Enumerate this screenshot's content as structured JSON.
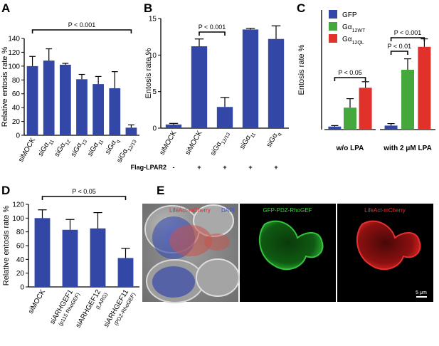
{
  "panels": {
    "A": {
      "letter": "A"
    },
    "B": {
      "letter": "B"
    },
    "C": {
      "letter": "C"
    },
    "D": {
      "letter": "D"
    },
    "E": {
      "letter": "E",
      "images": [
        {
          "label": "LifeAct-mCherry",
          "label2": "DAPI"
        },
        {
          "label": "GFP-PDZ-RhoGEF"
        },
        {
          "label": "LifeAct-mCherry",
          "scale_bar": "5 μm"
        }
      ]
    }
  },
  "chart_data": [
    {
      "panel": "A",
      "type": "bar",
      "ylabel": "Relative entosis rate %",
      "ylim": [
        0,
        140
      ],
      "yticks": [
        0,
        20,
        40,
        60,
        80,
        100,
        120,
        140
      ],
      "categories": [
        "siMOCK",
        "siGα11",
        "siGα12",
        "siGα13",
        "siGα11",
        "siGαq",
        "siGα12/13"
      ],
      "values": [
        100,
        108,
        102,
        81,
        74,
        68,
        11
      ],
      "errors": [
        14,
        17,
        2,
        7,
        11,
        24,
        4
      ],
      "color": "#3347a6",
      "annotations": [
        {
          "text": "P < 0.001",
          "from": 0,
          "to": 6
        }
      ]
    },
    {
      "panel": "B",
      "type": "bar",
      "ylabel": "Entosis rate %",
      "ylim": [
        0,
        15
      ],
      "yticks": [
        0,
        5,
        10,
        15
      ],
      "categories": [
        "siMOCK",
        "siMOCK",
        "siGα12/13",
        "siGα11",
        "siGαq"
      ],
      "values": [
        0.5,
        11.2,
        2.9,
        13.5,
        12.2
      ],
      "errors": [
        0.15,
        1.0,
        1.3,
        0.15,
        1.8
      ],
      "color": "#3347a6",
      "row_label": "Flag-LPAR2",
      "row_values": [
        "-",
        "+",
        "+",
        "+",
        "+"
      ],
      "annotations": [
        {
          "text": "P < 0.001",
          "from": 1,
          "to": 2
        }
      ]
    },
    {
      "panel": "C",
      "type": "bar",
      "ylabel": "Entosis rate %",
      "ylim": [
        0,
        6
      ],
      "categories": [
        "w/o LPA",
        "with 2 μM LPA"
      ],
      "series": [
        {
          "name": "GFP",
          "values": [
            0.15,
            0.2
          ],
          "errors": [
            0.05,
            0.1
          ],
          "color": "#3347a6"
        },
        {
          "name": "Gα12WT",
          "values": [
            1.1,
            3.0
          ],
          "errors": [
            0.45,
            0.55
          ],
          "color": "#45a83c"
        },
        {
          "name": "Gα12QL",
          "values": [
            2.1,
            4.15
          ],
          "errors": [
            0.3,
            0.4
          ],
          "color": "#e0312b"
        }
      ],
      "legend": "top-left",
      "annotations": [
        {
          "text": "P < 0.05",
          "group": 0,
          "from": 0,
          "to": 2
        },
        {
          "text": "P < 0.01",
          "group": 1,
          "from": 0,
          "to": 1
        },
        {
          "text": "P < 0.001",
          "group": 1,
          "from": 0,
          "to": 2
        }
      ]
    },
    {
      "panel": "D",
      "type": "bar",
      "ylabel": "Relative entosis rate %",
      "ylim": [
        0,
        120
      ],
      "yticks": [
        0,
        20,
        40,
        60,
        80,
        100,
        120
      ],
      "categories": [
        "siMOCK",
        "siARHGEF1",
        "siARHGEF12",
        "siARHGEF11"
      ],
      "subcategories": [
        "",
        "(p115 RhoGEF)",
        "(LARG)",
        "(PDZ-RhoGEF)"
      ],
      "values": [
        100,
        83,
        85,
        42
      ],
      "errors": [
        12,
        15,
        23,
        14
      ],
      "color": "#3347a6",
      "annotations": [
        {
          "text": "P < 0.05",
          "from": 0,
          "to": 3
        }
      ]
    }
  ]
}
